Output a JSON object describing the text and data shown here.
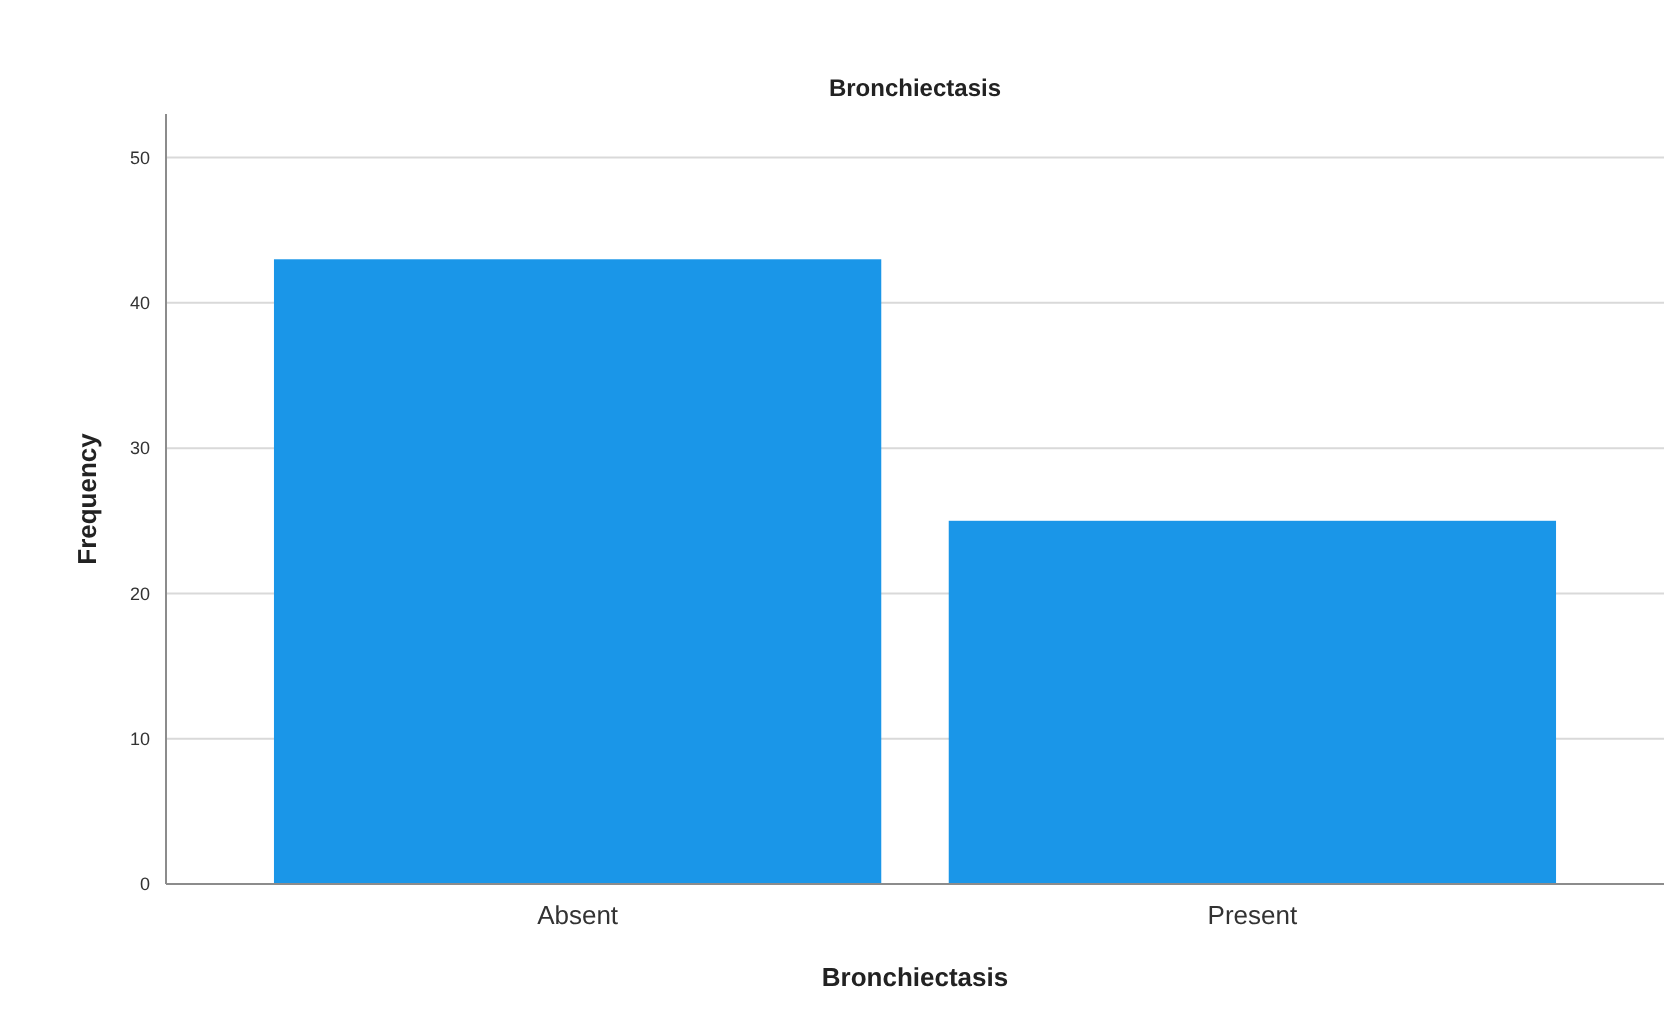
{
  "chart_data": {
    "type": "bar",
    "title": "Bronchiectasis",
    "xlabel": "Bronchiectasis",
    "ylabel": "Frequency",
    "categories": [
      "Absent",
      "Present"
    ],
    "values": [
      43,
      25
    ],
    "color": "#1a96e8",
    "ylim": [
      0,
      53
    ],
    "yticks": [
      0,
      10,
      20,
      30,
      40,
      50
    ],
    "grid": "y"
  }
}
